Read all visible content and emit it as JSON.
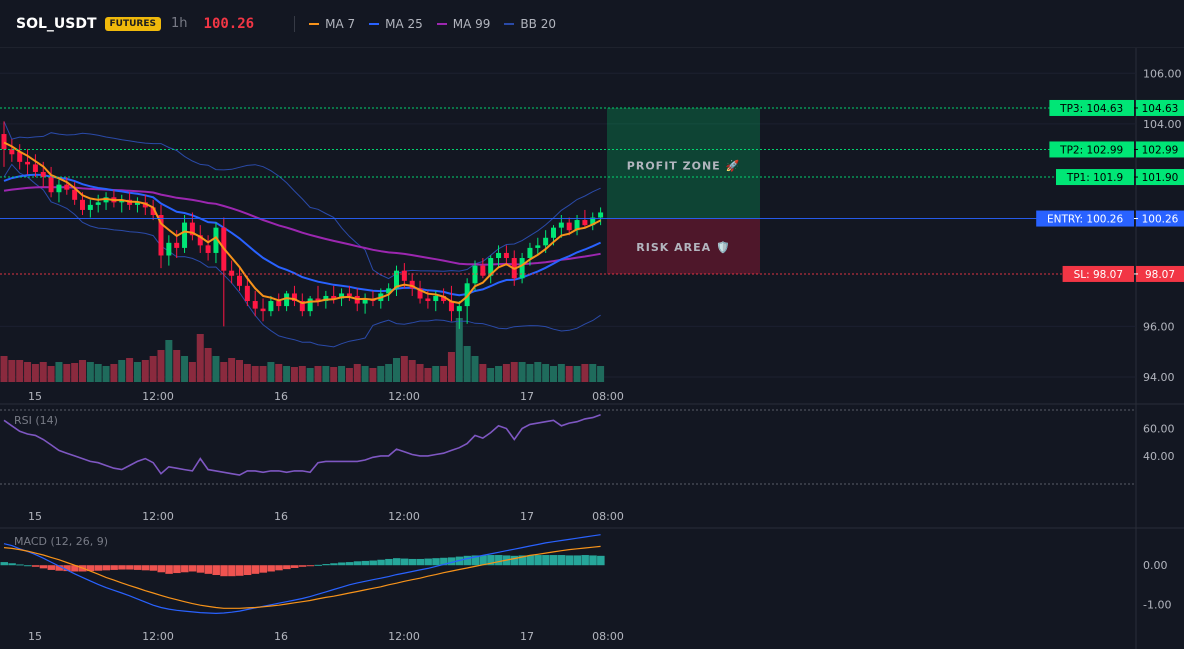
{
  "header": {
    "symbol": "SOL_USDT",
    "badge": "FUTURES",
    "timeframe": "1h",
    "price": "100.26",
    "indicators": [
      {
        "label": "MA 7",
        "color": "#f7931a"
      },
      {
        "label": "MA 25",
        "color": "#2962ff"
      },
      {
        "label": "MA 99",
        "color": "#9c27b0"
      },
      {
        "label": "BB 20",
        "color": "#2a4aa8"
      }
    ]
  },
  "price_pane": {
    "y_ticks": [
      "106.00",
      "104.00",
      "96.00",
      "94.00"
    ],
    "levels": [
      {
        "id": "tp3",
        "label": "TP3: 104.63",
        "value": "104.63",
        "price": 104.63,
        "color": "#00e676",
        "text_color": "#000000"
      },
      {
        "id": "tp2",
        "label": "TP2: 102.99",
        "value": "102.99",
        "price": 102.99,
        "color": "#00e676",
        "text_color": "#000000"
      },
      {
        "id": "tp1",
        "label": "TP1: 101.9",
        "value": "101.90",
        "price": 101.9,
        "color": "#00e676",
        "text_color": "#000000"
      },
      {
        "id": "entry",
        "label": "ENTRY: 100.26",
        "value": "100.26",
        "price": 100.26,
        "color": "#2962ff",
        "text_color": "#ffffff"
      },
      {
        "id": "sl",
        "label": "SL: 98.07",
        "value": "98.07",
        "price": 98.07,
        "color": "#f23645",
        "text_color": "#ffffff"
      }
    ],
    "profit_zone_label": "PROFIT ZONE 🚀",
    "risk_area_label": "RISK AREA 🛡️"
  },
  "x_ticks": [
    "15",
    "12:00",
    "16",
    "12:00",
    "17",
    "08:00"
  ],
  "rsi_pane": {
    "label": "RSI (14)",
    "y_ticks": [
      "60.00",
      "40.00"
    ]
  },
  "macd_pane": {
    "label": "MACD (12, 26, 9)",
    "y_ticks": [
      "0.00",
      "-1.00"
    ]
  },
  "colors": {
    "up": "#00e676",
    "down": "#ff1744",
    "vol_up": "#1f6b5c",
    "vol_down": "#8a2a3e",
    "ma7": "#f7931a",
    "ma25": "#2962ff",
    "ma99": "#9c27b0",
    "bb": "#2a4aa8",
    "rsi": "#7e57c2",
    "macd_line": "#2962ff",
    "macd_signal": "#f7931a",
    "hist_pos": "#26a69a",
    "hist_neg": "#ef5350"
  },
  "chart_data": {
    "type": "candlestick",
    "timeframe": "1h",
    "candles": [
      {
        "o": 103.6,
        "h": 104.1,
        "l": 102.3,
        "c": 103.0
      },
      {
        "o": 103.0,
        "h": 103.4,
        "l": 102.5,
        "c": 102.8
      },
      {
        "o": 102.9,
        "h": 103.2,
        "l": 102.2,
        "c": 102.5
      },
      {
        "o": 102.5,
        "h": 103.0,
        "l": 102.0,
        "c": 102.4
      },
      {
        "o": 102.4,
        "h": 102.8,
        "l": 101.9,
        "c": 102.1
      },
      {
        "o": 102.1,
        "h": 102.5,
        "l": 101.5,
        "c": 101.9
      },
      {
        "o": 101.9,
        "h": 102.3,
        "l": 101.1,
        "c": 101.3
      },
      {
        "o": 101.3,
        "h": 101.8,
        "l": 100.9,
        "c": 101.6
      },
      {
        "o": 101.6,
        "h": 101.9,
        "l": 101.2,
        "c": 101.4
      },
      {
        "o": 101.4,
        "h": 101.7,
        "l": 100.8,
        "c": 101.0
      },
      {
        "o": 101.0,
        "h": 101.3,
        "l": 100.4,
        "c": 100.6
      },
      {
        "o": 100.6,
        "h": 101.0,
        "l": 100.3,
        "c": 100.8
      },
      {
        "o": 100.8,
        "h": 101.2,
        "l": 100.5,
        "c": 100.9
      },
      {
        "o": 100.9,
        "h": 101.3,
        "l": 100.6,
        "c": 101.1
      },
      {
        "o": 101.1,
        "h": 101.4,
        "l": 100.7,
        "c": 100.9
      },
      {
        "o": 100.9,
        "h": 101.2,
        "l": 100.5,
        "c": 101.0
      },
      {
        "o": 101.0,
        "h": 101.3,
        "l": 100.6,
        "c": 100.8
      },
      {
        "o": 100.8,
        "h": 101.1,
        "l": 100.5,
        "c": 100.9
      },
      {
        "o": 100.9,
        "h": 101.2,
        "l": 100.4,
        "c": 100.7
      },
      {
        "o": 100.7,
        "h": 101.0,
        "l": 100.2,
        "c": 100.4
      },
      {
        "o": 100.4,
        "h": 100.8,
        "l": 98.3,
        "c": 98.8
      },
      {
        "o": 98.8,
        "h": 99.6,
        "l": 98.4,
        "c": 99.3
      },
      {
        "o": 99.3,
        "h": 99.8,
        "l": 98.7,
        "c": 99.1
      },
      {
        "o": 99.1,
        "h": 100.4,
        "l": 98.9,
        "c": 100.1
      },
      {
        "o": 100.1,
        "h": 100.5,
        "l": 99.4,
        "c": 99.6
      },
      {
        "o": 99.6,
        "h": 100.0,
        "l": 98.9,
        "c": 99.2
      },
      {
        "o": 99.2,
        "h": 99.6,
        "l": 98.6,
        "c": 98.9
      },
      {
        "o": 98.9,
        "h": 100.1,
        "l": 98.5,
        "c": 99.9
      },
      {
        "o": 99.9,
        "h": 100.3,
        "l": 96.0,
        "c": 98.2
      },
      {
        "o": 98.2,
        "h": 98.6,
        "l": 97.7,
        "c": 98.0
      },
      {
        "o": 98.0,
        "h": 98.3,
        "l": 97.4,
        "c": 97.6
      },
      {
        "o": 97.6,
        "h": 98.0,
        "l": 96.8,
        "c": 97.0
      },
      {
        "o": 97.0,
        "h": 97.4,
        "l": 96.4,
        "c": 96.7
      },
      {
        "o": 96.7,
        "h": 97.1,
        "l": 96.2,
        "c": 96.6
      },
      {
        "o": 96.6,
        "h": 97.2,
        "l": 96.4,
        "c": 97.0
      },
      {
        "o": 97.0,
        "h": 97.3,
        "l": 96.6,
        "c": 96.8
      },
      {
        "o": 96.8,
        "h": 97.4,
        "l": 96.6,
        "c": 97.3
      },
      {
        "o": 97.3,
        "h": 97.6,
        "l": 96.8,
        "c": 97.0
      },
      {
        "o": 97.0,
        "h": 97.3,
        "l": 96.4,
        "c": 96.6
      },
      {
        "o": 96.6,
        "h": 97.2,
        "l": 96.4,
        "c": 97.1
      },
      {
        "o": 97.1,
        "h": 97.6,
        "l": 96.8,
        "c": 97.0
      },
      {
        "o": 97.0,
        "h": 97.4,
        "l": 96.7,
        "c": 97.2
      },
      {
        "o": 97.2,
        "h": 97.6,
        "l": 96.9,
        "c": 97.1
      },
      {
        "o": 97.1,
        "h": 97.5,
        "l": 96.8,
        "c": 97.3
      },
      {
        "o": 97.3,
        "h": 97.6,
        "l": 97.0,
        "c": 97.2
      },
      {
        "o": 97.2,
        "h": 97.5,
        "l": 96.6,
        "c": 96.9
      },
      {
        "o": 96.9,
        "h": 97.3,
        "l": 96.5,
        "c": 97.1
      },
      {
        "o": 97.1,
        "h": 97.4,
        "l": 96.8,
        "c": 97.0
      },
      {
        "o": 97.0,
        "h": 97.5,
        "l": 96.7,
        "c": 97.3
      },
      {
        "o": 97.3,
        "h": 97.7,
        "l": 97.0,
        "c": 97.5
      },
      {
        "o": 97.5,
        "h": 98.4,
        "l": 97.2,
        "c": 98.2
      },
      {
        "o": 98.2,
        "h": 98.5,
        "l": 97.5,
        "c": 97.8
      },
      {
        "o": 97.8,
        "h": 98.1,
        "l": 97.2,
        "c": 97.5
      },
      {
        "o": 97.5,
        "h": 97.8,
        "l": 96.9,
        "c": 97.1
      },
      {
        "o": 97.1,
        "h": 97.4,
        "l": 96.7,
        "c": 97.0
      },
      {
        "o": 97.0,
        "h": 97.4,
        "l": 96.6,
        "c": 97.2
      },
      {
        "o": 97.2,
        "h": 97.5,
        "l": 96.9,
        "c": 97.0
      },
      {
        "o": 97.0,
        "h": 97.6,
        "l": 96.2,
        "c": 96.6
      },
      {
        "o": 96.6,
        "h": 97.0,
        "l": 95.9,
        "c": 96.8
      },
      {
        "o": 96.8,
        "h": 97.9,
        "l": 96.1,
        "c": 97.7
      },
      {
        "o": 97.7,
        "h": 98.6,
        "l": 97.4,
        "c": 98.4
      },
      {
        "o": 98.4,
        "h": 98.7,
        "l": 97.9,
        "c": 98.0
      },
      {
        "o": 98.0,
        "h": 98.8,
        "l": 97.7,
        "c": 98.7
      },
      {
        "o": 98.7,
        "h": 99.2,
        "l": 98.3,
        "c": 98.9
      },
      {
        "o": 98.9,
        "h": 99.2,
        "l": 98.4,
        "c": 98.7
      },
      {
        "o": 98.7,
        "h": 99.0,
        "l": 97.6,
        "c": 97.9
      },
      {
        "o": 97.9,
        "h": 98.9,
        "l": 97.7,
        "c": 98.7
      },
      {
        "o": 98.7,
        "h": 99.3,
        "l": 98.4,
        "c": 99.1
      },
      {
        "o": 99.1,
        "h": 99.5,
        "l": 98.8,
        "c": 99.2
      },
      {
        "o": 99.2,
        "h": 99.8,
        "l": 98.9,
        "c": 99.5
      },
      {
        "o": 99.5,
        "h": 100.0,
        "l": 99.2,
        "c": 99.9
      },
      {
        "o": 99.9,
        "h": 100.4,
        "l": 99.5,
        "c": 100.1
      },
      {
        "o": 100.1,
        "h": 100.3,
        "l": 99.6,
        "c": 99.8
      },
      {
        "o": 99.8,
        "h": 100.4,
        "l": 99.6,
        "c": 100.2
      },
      {
        "o": 100.2,
        "h": 100.6,
        "l": 99.9,
        "c": 100.0
      },
      {
        "o": 100.0,
        "h": 100.5,
        "l": 99.8,
        "c": 100.3
      },
      {
        "o": 100.3,
        "h": 100.7,
        "l": 100.0,
        "c": 100.5
      }
    ],
    "volume": [
      26,
      22,
      22,
      20,
      18,
      20,
      16,
      20,
      18,
      19,
      22,
      20,
      18,
      16,
      18,
      22,
      24,
      20,
      22,
      26,
      32,
      42,
      32,
      26,
      20,
      48,
      34,
      26,
      20,
      24,
      22,
      18,
      16,
      16,
      20,
      18,
      16,
      15,
      16,
      14,
      16,
      16,
      15,
      16,
      14,
      18,
      16,
      14,
      16,
      18,
      24,
      26,
      22,
      18,
      14,
      16,
      16,
      30,
      64,
      36,
      26,
      18,
      14,
      16,
      18,
      20,
      20,
      18,
      20,
      18,
      16,
      18,
      16,
      16,
      18,
      18,
      16
    ],
    "rsi": [
      66,
      62,
      58,
      56,
      55,
      52,
      48,
      44,
      42,
      40,
      38,
      36,
      35,
      33,
      31,
      30,
      33,
      36,
      38,
      35,
      27,
      32,
      31,
      30,
      29,
      38,
      30,
      29,
      28,
      27,
      26,
      29,
      29,
      28,
      29,
      29,
      28,
      29,
      29,
      28,
      35,
      36,
      36,
      36,
      36,
      36,
      37,
      39,
      40,
      40,
      45,
      43,
      41,
      40,
      40,
      41,
      42,
      44,
      46,
      49,
      55,
      53,
      57,
      62,
      60,
      52,
      60,
      63,
      64,
      65,
      66,
      62,
      64,
      65,
      67,
      68,
      70
    ],
    "macd_hist": [
      0.08,
      0.05,
      0.02,
      0.0,
      -0.04,
      -0.08,
      -0.12,
      -0.14,
      -0.15,
      -0.16,
      -0.16,
      -0.15,
      -0.14,
      -0.13,
      -0.12,
      -0.11,
      -0.11,
      -0.12,
      -0.13,
      -0.14,
      -0.18,
      -0.22,
      -0.2,
      -0.18,
      -0.16,
      -0.19,
      -0.22,
      -0.25,
      -0.28,
      -0.28,
      -0.27,
      -0.25,
      -0.22,
      -0.19,
      -0.16,
      -0.13,
      -0.1,
      -0.07,
      -0.04,
      -0.02,
      0.01,
      0.03,
      0.05,
      0.07,
      0.08,
      0.1,
      0.11,
      0.12,
      0.14,
      0.16,
      0.18,
      0.17,
      0.16,
      0.16,
      0.17,
      0.18,
      0.19,
      0.2,
      0.22,
      0.24,
      0.25,
      0.25,
      0.26,
      0.26,
      0.25,
      0.24,
      0.25,
      0.25,
      0.26,
      0.26,
      0.26,
      0.26,
      0.25,
      0.25,
      0.26,
      0.25,
      0.24
    ],
    "macd_line": [
      0.55,
      0.5,
      0.42,
      0.35,
      0.27,
      0.18,
      0.08,
      -0.02,
      -0.12,
      -0.22,
      -0.31,
      -0.4,
      -0.49,
      -0.57,
      -0.64,
      -0.71,
      -0.78,
      -0.86,
      -0.94,
      -1.02,
      -1.08,
      -1.12,
      -1.15,
      -1.17,
      -1.19,
      -1.21,
      -1.22,
      -1.23,
      -1.22,
      -1.2,
      -1.17,
      -1.13,
      -1.09,
      -1.05,
      -1.01,
      -0.97,
      -0.93,
      -0.89,
      -0.85,
      -0.8,
      -0.74,
      -0.68,
      -0.62,
      -0.56,
      -0.5,
      -0.45,
      -0.41,
      -0.37,
      -0.33,
      -0.29,
      -0.24,
      -0.2,
      -0.16,
      -0.12,
      -0.08,
      -0.03,
      0.02,
      0.07,
      0.12,
      0.17,
      0.21,
      0.25,
      0.29,
      0.33,
      0.37,
      0.41,
      0.45,
      0.49,
      0.53,
      0.57,
      0.6,
      0.63,
      0.66,
      0.69,
      0.72,
      0.75,
      0.78
    ],
    "macd_signal": [
      0.45,
      0.43,
      0.4,
      0.36,
      0.31,
      0.26,
      0.2,
      0.14,
      0.07,
      0.0,
      -0.07,
      -0.15,
      -0.23,
      -0.31,
      -0.38,
      -0.45,
      -0.52,
      -0.58,
      -0.65,
      -0.71,
      -0.77,
      -0.83,
      -0.88,
      -0.93,
      -0.98,
      -1.02,
      -1.05,
      -1.08,
      -1.1,
      -1.1,
      -1.1,
      -1.09,
      -1.08,
      -1.06,
      -1.04,
      -1.02,
      -0.99,
      -0.96,
      -0.93,
      -0.9,
      -0.86,
      -0.82,
      -0.79,
      -0.75,
      -0.71,
      -0.67,
      -0.63,
      -0.59,
      -0.55,
      -0.5,
      -0.46,
      -0.41,
      -0.37,
      -0.33,
      -0.28,
      -0.24,
      -0.19,
      -0.15,
      -0.11,
      -0.07,
      -0.03,
      0.01,
      0.05,
      0.09,
      0.13,
      0.17,
      0.21,
      0.25,
      0.28,
      0.31,
      0.34,
      0.37,
      0.4,
      0.42,
      0.44,
      0.46,
      0.48
    ],
    "price_range": [
      93.8,
      107.0
    ],
    "rsi_range": [
      18,
      75
    ],
    "macd_range": [
      -1.5,
      0.95
    ]
  }
}
